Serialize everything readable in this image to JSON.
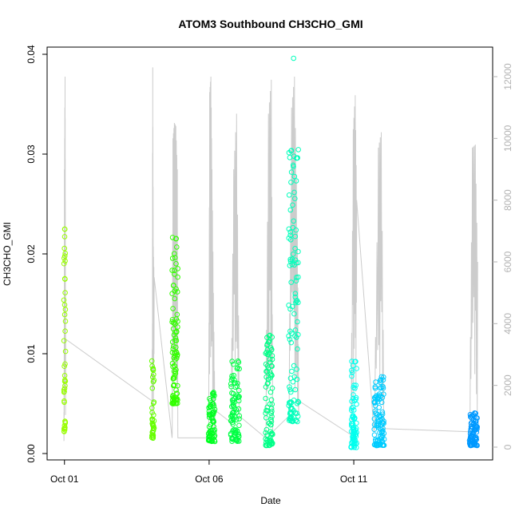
{
  "chart_data": {
    "type": "scatter",
    "title": "ATOM3 Southbound CH3CHO_GMI",
    "xlabel": "Date",
    "ylabel": "CH3CHO_GMI",
    "x_ticks": [
      {
        "label": "Oct 01",
        "day": 1
      },
      {
        "label": "Oct 06",
        "day": 6
      },
      {
        "label": "Oct 11",
        "day": 11
      }
    ],
    "xlim_days": [
      0.4,
      15.8
    ],
    "ylim": [
      0,
      0.04
    ],
    "y_ticks": [
      0.0,
      0.01,
      0.02,
      0.03,
      0.04
    ],
    "y_tick_labels": [
      "0.00",
      "0.01",
      "0.02",
      "0.03",
      "0.04"
    ],
    "y2lim": [
      0,
      12500
    ],
    "y2_ticks": [
      0,
      2000,
      4000,
      6000,
      8000,
      10000,
      12000
    ],
    "y2_tick_labels": [
      "0",
      "2000",
      "4000",
      "6000",
      "8000",
      "10000",
      "12000"
    ],
    "altitude_color": "#cccccc",
    "flights": [
      {
        "day_start": 0.98,
        "day_end": 1.04,
        "color": "#99ff00",
        "y_range": [
          0.0022,
          0.0228
        ],
        "outliers": [
          0.0193
        ],
        "count": 42,
        "altitude": [
          [
            0.98,
            200
          ],
          [
            0.99,
            3000
          ],
          [
            1.0,
            9000
          ],
          [
            1.02,
            12000
          ],
          [
            1.03,
            8000
          ],
          [
            1.04,
            3500
          ]
        ]
      },
      {
        "day_start": 4.02,
        "day_end": 4.1,
        "color": "#66ff00",
        "y_range": [
          0.0015,
          0.0098
        ],
        "outliers": [],
        "count": 38,
        "altitude": [
          [
            4.02,
            1500
          ],
          [
            4.04,
            4000
          ],
          [
            4.05,
            12300
          ],
          [
            4.07,
            6500
          ],
          [
            4.1,
            5500
          ]
        ]
      },
      {
        "day_start": 4.72,
        "day_end": 4.92,
        "color": "#33ff00",
        "y_range": [
          0.005,
          0.0226
        ],
        "outliers": [],
        "count": 95,
        "altitude": [
          [
            4.72,
            300
          ],
          [
            4.75,
            10000
          ],
          [
            4.8,
            10500
          ],
          [
            4.85,
            10400
          ],
          [
            4.9,
            9000
          ],
          [
            4.92,
            300
          ]
        ]
      },
      {
        "day_start": 5.98,
        "day_end": 6.2,
        "color": "#00ff22",
        "y_range": [
          0.0012,
          0.0062
        ],
        "outliers": [],
        "count": 70,
        "altitude": [
          [
            5.98,
            300
          ],
          [
            6.02,
            11500
          ],
          [
            6.06,
            12000
          ],
          [
            6.1,
            9000
          ],
          [
            6.15,
            5000
          ],
          [
            6.2,
            1200
          ]
        ]
      },
      {
        "day_start": 6.75,
        "day_end": 7.05,
        "color": "#00ff44",
        "y_range": [
          0.0012,
          0.0096
        ],
        "outliers": [],
        "count": 88,
        "altitude": [
          [
            6.75,
            800
          ],
          [
            6.85,
            9000
          ],
          [
            6.95,
            10800
          ],
          [
            7.05,
            1000
          ]
        ]
      },
      {
        "day_start": 7.95,
        "day_end": 8.2,
        "color": "#00ff88",
        "y_range": [
          0.0008,
          0.012
        ],
        "outliers": [],
        "count": 90,
        "altitude": [
          [
            7.95,
            300
          ],
          [
            8.05,
            10800
          ],
          [
            8.15,
            11900
          ],
          [
            8.2,
            500
          ]
        ]
      },
      {
        "day_start": 8.75,
        "day_end": 9.1,
        "color": "#00ffbb",
        "y_range": [
          0.0032,
          0.031
        ],
        "outliers": [
          0.0396,
          0.0289,
          0.0249
        ],
        "count": 110,
        "altitude": [
          [
            8.75,
            1000
          ],
          [
            8.85,
            11000
          ],
          [
            8.95,
            12000
          ],
          [
            9.05,
            7000
          ],
          [
            9.1,
            1500
          ]
        ]
      },
      {
        "day_start": 10.9,
        "day_end": 11.1,
        "color": "#00ffee",
        "y_range": [
          0.0006,
          0.0094
        ],
        "outliers": [],
        "count": 75,
        "altitude": [
          [
            10.9,
            400
          ],
          [
            10.98,
            10300
          ],
          [
            11.05,
            11400
          ],
          [
            11.1,
            8000
          ]
        ]
      },
      {
        "day_start": 11.7,
        "day_end": 12.05,
        "color": "#00ccff",
        "y_range": [
          0.0008,
          0.008
        ],
        "outliers": [],
        "count": 100,
        "altitude": [
          [
            11.7,
            500
          ],
          [
            11.85,
            9700
          ],
          [
            11.95,
            10200
          ],
          [
            12.05,
            600
          ]
        ]
      },
      {
        "day_start": 15.0,
        "day_end": 15.28,
        "color": "#0099ff",
        "y_range": [
          0.0008,
          0.0041
        ],
        "outliers": [],
        "count": 85,
        "altitude": [
          [
            15.0,
            500
          ],
          [
            15.1,
            9700
          ],
          [
            15.2,
            9800
          ],
          [
            15.28,
            6000
          ]
        ]
      }
    ]
  }
}
